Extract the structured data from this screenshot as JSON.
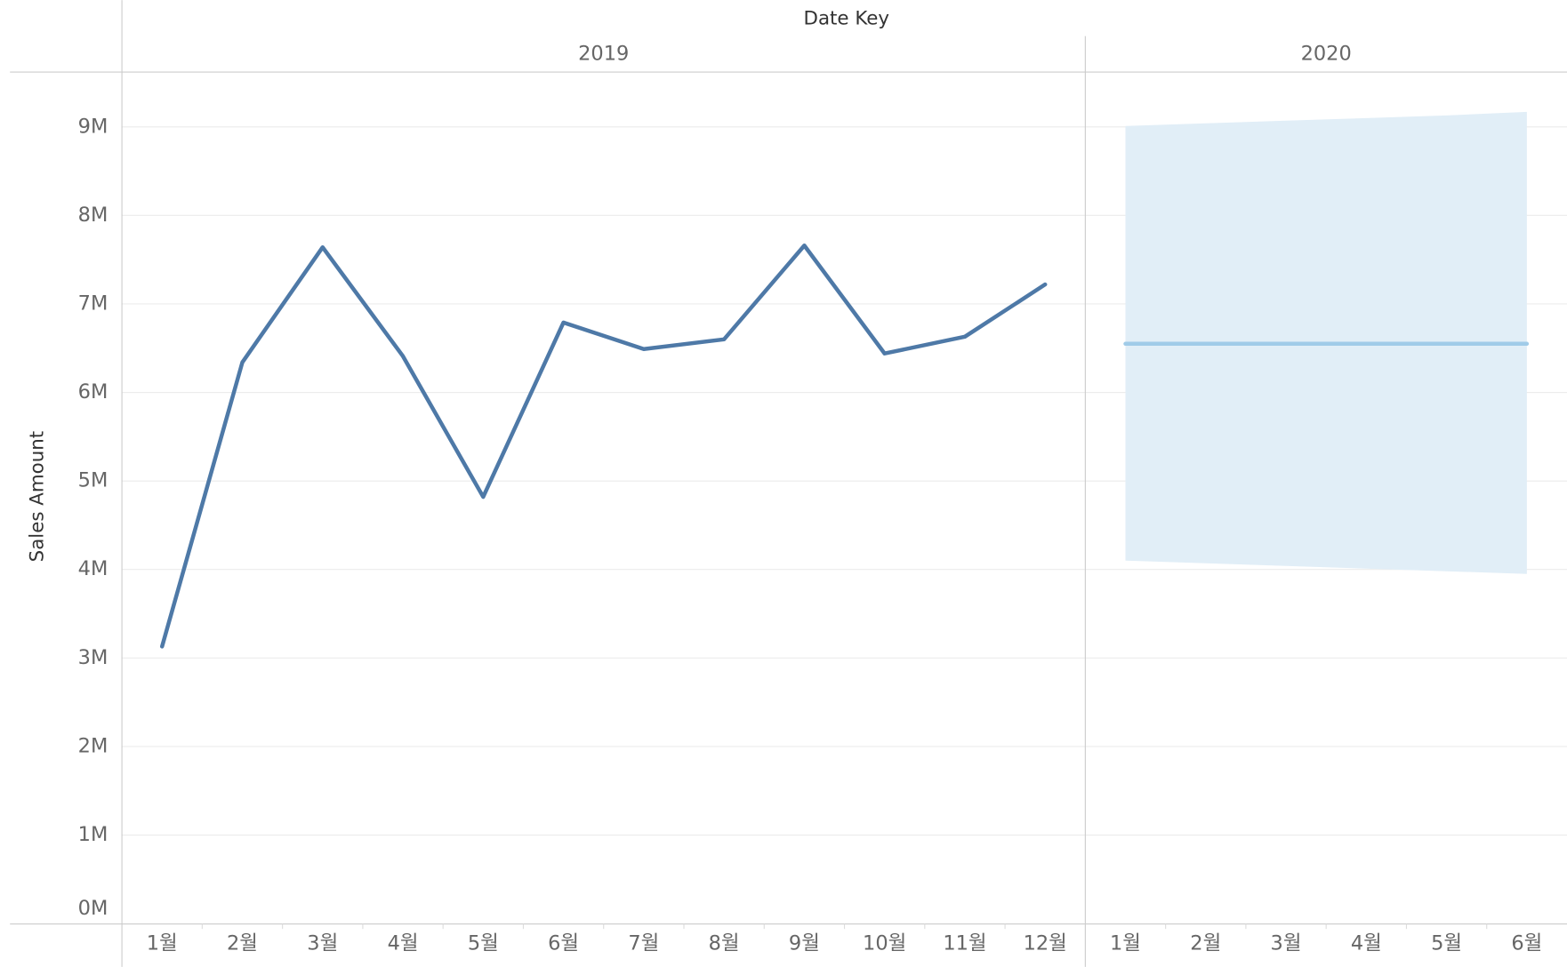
{
  "chart_data": {
    "type": "line",
    "x_title": "Date Key",
    "y_title": "Sales Amount",
    "ylim": [
      0,
      9620000
    ],
    "yticks": [
      {
        "value": 0,
        "label": "0M"
      },
      {
        "value": 1000000,
        "label": "1M"
      },
      {
        "value": 2000000,
        "label": "2M"
      },
      {
        "value": 3000000,
        "label": "3M"
      },
      {
        "value": 4000000,
        "label": "4M"
      },
      {
        "value": 5000000,
        "label": "5M"
      },
      {
        "value": 6000000,
        "label": "6M"
      },
      {
        "value": 7000000,
        "label": "7M"
      },
      {
        "value": 8000000,
        "label": "8M"
      },
      {
        "value": 9000000,
        "label": "9M"
      }
    ],
    "grid": true,
    "panes": [
      {
        "year": "2019",
        "categories": [
          "1월",
          "2월",
          "3월",
          "4월",
          "5월",
          "6월",
          "7월",
          "8월",
          "9월",
          "10월",
          "11월",
          "12월"
        ],
        "series": [
          {
            "color": "#4e79a7",
            "values": [
              3130000,
              6340000,
              7640000,
              6410000,
              4820000,
              6790000,
              6490000,
              6600000,
              7660000,
              6440000,
              6630000,
              7220000
            ]
          }
        ]
      },
      {
        "year": "2020",
        "categories": [
          "1월",
          "2월",
          "3월",
          "4월",
          "5월",
          "6월"
        ],
        "series": [
          {
            "color": "#a0cbe8",
            "band_color": "#e1eef7",
            "values": [
              6550000,
              6550000,
              6550000,
              6550000,
              6550000,
              6550000
            ],
            "upper": [
              9010000,
              9040000,
              9070000,
              9100000,
              9130000,
              9170000
            ],
            "lower": [
              4100000,
              4070000,
              4040000,
              4010000,
              3980000,
              3950000
            ]
          }
        ]
      }
    ]
  }
}
